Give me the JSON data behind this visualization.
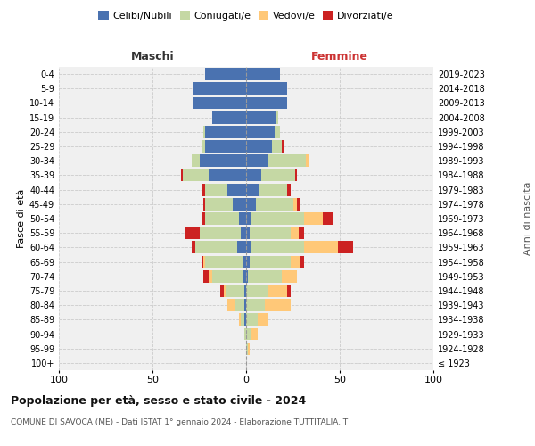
{
  "age_groups": [
    "100+",
    "95-99",
    "90-94",
    "85-89",
    "80-84",
    "75-79",
    "70-74",
    "65-69",
    "60-64",
    "55-59",
    "50-54",
    "45-49",
    "40-44",
    "35-39",
    "30-34",
    "25-29",
    "20-24",
    "15-19",
    "10-14",
    "5-9",
    "0-4"
  ],
  "birth_years": [
    "≤ 1923",
    "1924-1928",
    "1929-1933",
    "1934-1938",
    "1939-1943",
    "1944-1948",
    "1949-1953",
    "1954-1958",
    "1959-1963",
    "1964-1968",
    "1969-1973",
    "1974-1978",
    "1979-1983",
    "1984-1988",
    "1989-1993",
    "1994-1998",
    "1999-2003",
    "2004-2008",
    "2009-2013",
    "2014-2018",
    "2019-2023"
  ],
  "male": {
    "celibi": [
      0,
      0,
      0,
      1,
      1,
      1,
      2,
      2,
      5,
      3,
      4,
      7,
      10,
      20,
      25,
      22,
      22,
      18,
      28,
      28,
      22
    ],
    "coniugati": [
      0,
      0,
      1,
      2,
      5,
      10,
      16,
      20,
      22,
      22,
      18,
      15,
      12,
      14,
      4,
      2,
      1,
      0,
      0,
      0,
      0
    ],
    "vedovi": [
      0,
      0,
      0,
      1,
      4,
      1,
      2,
      1,
      0,
      0,
      0,
      0,
      0,
      0,
      0,
      0,
      0,
      0,
      0,
      0,
      0
    ],
    "divorziati": [
      0,
      0,
      0,
      0,
      0,
      2,
      3,
      1,
      2,
      8,
      2,
      1,
      2,
      1,
      0,
      0,
      0,
      0,
      0,
      0,
      0
    ]
  },
  "female": {
    "nubili": [
      0,
      0,
      0,
      0,
      0,
      0,
      1,
      2,
      3,
      2,
      3,
      5,
      7,
      8,
      12,
      14,
      15,
      16,
      22,
      22,
      18
    ],
    "coniugate": [
      0,
      1,
      3,
      6,
      10,
      12,
      18,
      22,
      28,
      22,
      28,
      20,
      15,
      18,
      20,
      5,
      3,
      1,
      0,
      0,
      0
    ],
    "vedove": [
      0,
      1,
      3,
      6,
      14,
      10,
      8,
      5,
      18,
      4,
      10,
      2,
      0,
      0,
      2,
      0,
      0,
      0,
      0,
      0,
      0
    ],
    "divorziate": [
      0,
      0,
      0,
      0,
      0,
      2,
      0,
      2,
      8,
      3,
      5,
      2,
      2,
      1,
      0,
      1,
      0,
      0,
      0,
      0,
      0
    ]
  },
  "colors": {
    "celibi_nubili": "#4a72b0",
    "coniugati": "#c5d8a4",
    "vedovi": "#ffc878",
    "divorziati": "#cc2222"
  },
  "title": "Popolazione per età, sesso e stato civile - 2024",
  "subtitle": "COMUNE DI SAVOCA (ME) - Dati ISTAT 1° gennaio 2024 - Elaborazione TUTTITALIA.IT",
  "xlabel_left": "Maschi",
  "xlabel_right": "Femmine",
  "ylabel_left": "Fasce di età",
  "ylabel_right": "Anni di nascita",
  "xlim": 100,
  "bg_color": "#ffffff",
  "plot_bg_color": "#f0f0f0",
  "grid_color": "#cccccc",
  "bar_height": 0.85
}
